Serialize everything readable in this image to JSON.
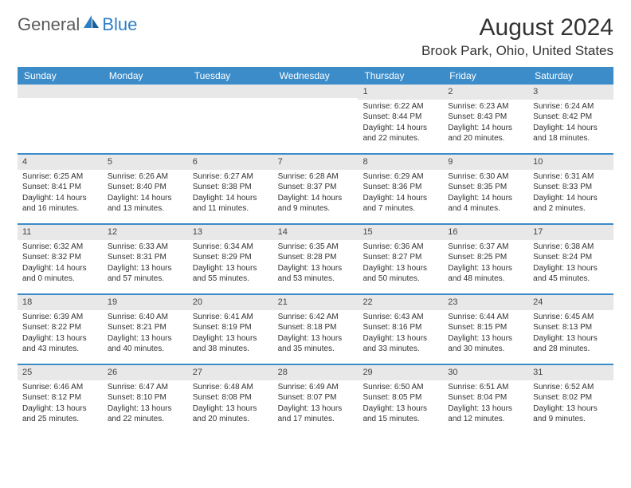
{
  "logo": {
    "text_gray": "General",
    "text_blue": "Blue"
  },
  "title": "August 2024",
  "location": "Brook Park, Ohio, United States",
  "colors": {
    "header_bg": "#3b8cc9",
    "header_text": "#ffffff",
    "daynum_bg": "#e8e8e8",
    "border": "#3b8cc9",
    "logo_blue": "#2d7fc4",
    "logo_gray": "#5a5a5a"
  },
  "day_names": [
    "Sunday",
    "Monday",
    "Tuesday",
    "Wednesday",
    "Thursday",
    "Friday",
    "Saturday"
  ],
  "weeks": [
    [
      {
        "n": "",
        "sr": "",
        "ss": "",
        "dl": ""
      },
      {
        "n": "",
        "sr": "",
        "ss": "",
        "dl": ""
      },
      {
        "n": "",
        "sr": "",
        "ss": "",
        "dl": ""
      },
      {
        "n": "",
        "sr": "",
        "ss": "",
        "dl": ""
      },
      {
        "n": "1",
        "sr": "Sunrise: 6:22 AM",
        "ss": "Sunset: 8:44 PM",
        "dl": "Daylight: 14 hours and 22 minutes."
      },
      {
        "n": "2",
        "sr": "Sunrise: 6:23 AM",
        "ss": "Sunset: 8:43 PM",
        "dl": "Daylight: 14 hours and 20 minutes."
      },
      {
        "n": "3",
        "sr": "Sunrise: 6:24 AM",
        "ss": "Sunset: 8:42 PM",
        "dl": "Daylight: 14 hours and 18 minutes."
      }
    ],
    [
      {
        "n": "4",
        "sr": "Sunrise: 6:25 AM",
        "ss": "Sunset: 8:41 PM",
        "dl": "Daylight: 14 hours and 16 minutes."
      },
      {
        "n": "5",
        "sr": "Sunrise: 6:26 AM",
        "ss": "Sunset: 8:40 PM",
        "dl": "Daylight: 14 hours and 13 minutes."
      },
      {
        "n": "6",
        "sr": "Sunrise: 6:27 AM",
        "ss": "Sunset: 8:38 PM",
        "dl": "Daylight: 14 hours and 11 minutes."
      },
      {
        "n": "7",
        "sr": "Sunrise: 6:28 AM",
        "ss": "Sunset: 8:37 PM",
        "dl": "Daylight: 14 hours and 9 minutes."
      },
      {
        "n": "8",
        "sr": "Sunrise: 6:29 AM",
        "ss": "Sunset: 8:36 PM",
        "dl": "Daylight: 14 hours and 7 minutes."
      },
      {
        "n": "9",
        "sr": "Sunrise: 6:30 AM",
        "ss": "Sunset: 8:35 PM",
        "dl": "Daylight: 14 hours and 4 minutes."
      },
      {
        "n": "10",
        "sr": "Sunrise: 6:31 AM",
        "ss": "Sunset: 8:33 PM",
        "dl": "Daylight: 14 hours and 2 minutes."
      }
    ],
    [
      {
        "n": "11",
        "sr": "Sunrise: 6:32 AM",
        "ss": "Sunset: 8:32 PM",
        "dl": "Daylight: 14 hours and 0 minutes."
      },
      {
        "n": "12",
        "sr": "Sunrise: 6:33 AM",
        "ss": "Sunset: 8:31 PM",
        "dl": "Daylight: 13 hours and 57 minutes."
      },
      {
        "n": "13",
        "sr": "Sunrise: 6:34 AM",
        "ss": "Sunset: 8:29 PM",
        "dl": "Daylight: 13 hours and 55 minutes."
      },
      {
        "n": "14",
        "sr": "Sunrise: 6:35 AM",
        "ss": "Sunset: 8:28 PM",
        "dl": "Daylight: 13 hours and 53 minutes."
      },
      {
        "n": "15",
        "sr": "Sunrise: 6:36 AM",
        "ss": "Sunset: 8:27 PM",
        "dl": "Daylight: 13 hours and 50 minutes."
      },
      {
        "n": "16",
        "sr": "Sunrise: 6:37 AM",
        "ss": "Sunset: 8:25 PM",
        "dl": "Daylight: 13 hours and 48 minutes."
      },
      {
        "n": "17",
        "sr": "Sunrise: 6:38 AM",
        "ss": "Sunset: 8:24 PM",
        "dl": "Daylight: 13 hours and 45 minutes."
      }
    ],
    [
      {
        "n": "18",
        "sr": "Sunrise: 6:39 AM",
        "ss": "Sunset: 8:22 PM",
        "dl": "Daylight: 13 hours and 43 minutes."
      },
      {
        "n": "19",
        "sr": "Sunrise: 6:40 AM",
        "ss": "Sunset: 8:21 PM",
        "dl": "Daylight: 13 hours and 40 minutes."
      },
      {
        "n": "20",
        "sr": "Sunrise: 6:41 AM",
        "ss": "Sunset: 8:19 PM",
        "dl": "Daylight: 13 hours and 38 minutes."
      },
      {
        "n": "21",
        "sr": "Sunrise: 6:42 AM",
        "ss": "Sunset: 8:18 PM",
        "dl": "Daylight: 13 hours and 35 minutes."
      },
      {
        "n": "22",
        "sr": "Sunrise: 6:43 AM",
        "ss": "Sunset: 8:16 PM",
        "dl": "Daylight: 13 hours and 33 minutes."
      },
      {
        "n": "23",
        "sr": "Sunrise: 6:44 AM",
        "ss": "Sunset: 8:15 PM",
        "dl": "Daylight: 13 hours and 30 minutes."
      },
      {
        "n": "24",
        "sr": "Sunrise: 6:45 AM",
        "ss": "Sunset: 8:13 PM",
        "dl": "Daylight: 13 hours and 28 minutes."
      }
    ],
    [
      {
        "n": "25",
        "sr": "Sunrise: 6:46 AM",
        "ss": "Sunset: 8:12 PM",
        "dl": "Daylight: 13 hours and 25 minutes."
      },
      {
        "n": "26",
        "sr": "Sunrise: 6:47 AM",
        "ss": "Sunset: 8:10 PM",
        "dl": "Daylight: 13 hours and 22 minutes."
      },
      {
        "n": "27",
        "sr": "Sunrise: 6:48 AM",
        "ss": "Sunset: 8:08 PM",
        "dl": "Daylight: 13 hours and 20 minutes."
      },
      {
        "n": "28",
        "sr": "Sunrise: 6:49 AM",
        "ss": "Sunset: 8:07 PM",
        "dl": "Daylight: 13 hours and 17 minutes."
      },
      {
        "n": "29",
        "sr": "Sunrise: 6:50 AM",
        "ss": "Sunset: 8:05 PM",
        "dl": "Daylight: 13 hours and 15 minutes."
      },
      {
        "n": "30",
        "sr": "Sunrise: 6:51 AM",
        "ss": "Sunset: 8:04 PM",
        "dl": "Daylight: 13 hours and 12 minutes."
      },
      {
        "n": "31",
        "sr": "Sunrise: 6:52 AM",
        "ss": "Sunset: 8:02 PM",
        "dl": "Daylight: 13 hours and 9 minutes."
      }
    ]
  ]
}
